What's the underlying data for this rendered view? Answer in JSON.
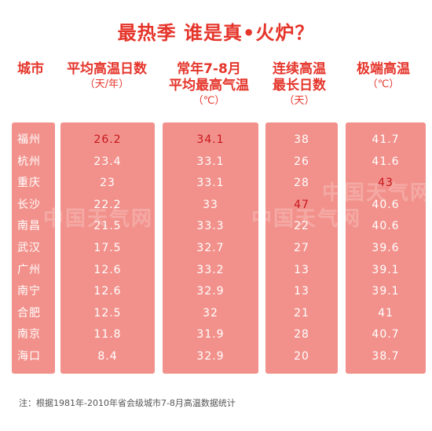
{
  "title": "最热季 谁是真•火炉？",
  "headers": [
    {
      "main": "城市",
      "sub": ""
    },
    {
      "main": "平均高温日数",
      "sub": "（天/年）"
    },
    {
      "main": "常年7-8月\n平均最高气温",
      "sub": "（℃）"
    },
    {
      "main": "连续高温\n最长日数",
      "sub": "（天）"
    },
    {
      "main": "极端高温",
      "sub": "（℃）"
    }
  ],
  "chart_data": {
    "type": "table",
    "title": "最热季 谁是真•火炉？",
    "columns": [
      "城市",
      "平均高温日数（天/年）",
      "常年7-8月平均最高气温（℃）",
      "连续高温最长日数（天）",
      "极端高温（℃）"
    ],
    "rows": [
      [
        "福州",
        "26.2",
        "34.1",
        "38",
        "41.7"
      ],
      [
        "杭州",
        "23.4",
        "33.1",
        "26",
        "41.6"
      ],
      [
        "重庆",
        "23",
        "33.1",
        "28",
        "43"
      ],
      [
        "长沙",
        "22.2",
        "33",
        "47",
        "40.6"
      ],
      [
        "南昌",
        "21.5",
        "33.3",
        "22",
        "40.6"
      ],
      [
        "武汉",
        "17.5",
        "32.7",
        "27",
        "39.6"
      ],
      [
        "广州",
        "12.6",
        "33.2",
        "13",
        "39.1"
      ],
      [
        "南宁",
        "12.6",
        "32.9",
        "13",
        "39.1"
      ],
      [
        "合肥",
        "12.5",
        "32",
        "21",
        "41"
      ],
      [
        "南京",
        "11.8",
        "31.9",
        "28",
        "40.7"
      ],
      [
        "海口",
        "8.4",
        "32.9",
        "20",
        "38.7"
      ]
    ],
    "highlights": [
      [
        0,
        1
      ],
      [
        0,
        2
      ],
      [
        2,
        4
      ],
      [
        3,
        3
      ]
    ]
  },
  "watermark": "中国天气网",
  "note": "注：根据1981年-2010年省会级城市7-8月高温数据统计",
  "colors": {
    "accent": "#e5352b",
    "column_bg": "#f2918b",
    "highlight_text": "#c8161d",
    "cell_text": "#ffffff"
  }
}
